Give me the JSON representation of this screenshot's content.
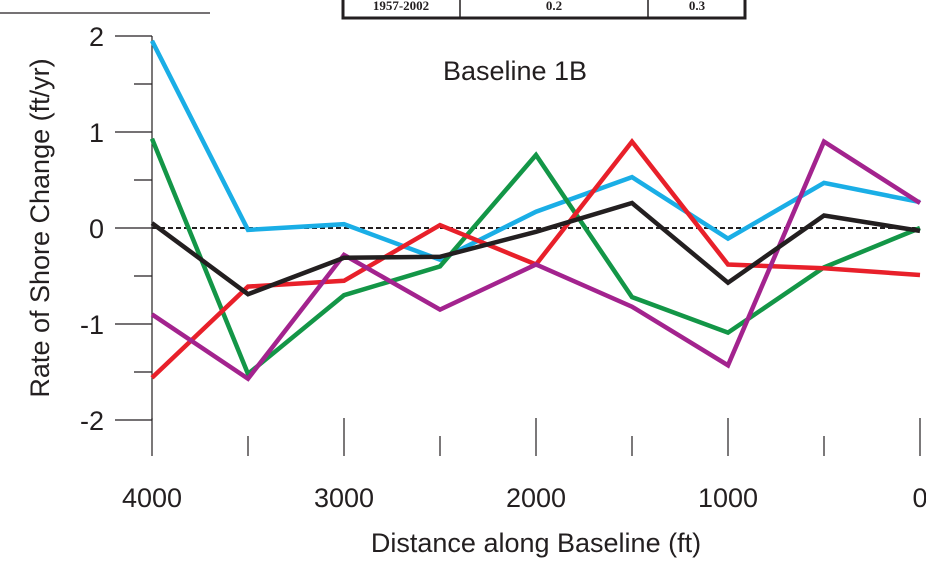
{
  "chart_data": {
    "type": "line",
    "title": "Baseline 1B",
    "xlabel": "Distance along Baseline (ft)",
    "ylabel": "Rate of Shore Change (ft/yr)",
    "xlim": [
      4000,
      0
    ],
    "ylim": [
      -2,
      2
    ],
    "x_ticks": [
      "4000",
      "3000",
      "2000",
      "1000",
      "0"
    ],
    "y_ticks": [
      "2",
      "1",
      "0",
      "-1",
      "-2"
    ],
    "zero_line": "dashed",
    "grid": false,
    "legend": "none",
    "x": [
      4000,
      3500,
      3000,
      2500,
      2000,
      1500,
      1000,
      500,
      0
    ],
    "series": [
      {
        "color": "#1aaee6",
        "values": [
          1.95,
          -0.02,
          0.04,
          -0.33,
          0.17,
          0.53,
          -0.11,
          0.47,
          0.27
        ]
      },
      {
        "color": "#139647",
        "values": [
          0.93,
          -1.52,
          -0.7,
          -0.4,
          0.76,
          -0.72,
          -1.09,
          -0.41,
          0.0
        ]
      },
      {
        "color": "#e8202a",
        "values": [
          -1.56,
          -0.61,
          -0.55,
          0.03,
          -0.38,
          0.9,
          -0.38,
          -0.42,
          -0.49
        ]
      },
      {
        "color": "#a3238e",
        "values": [
          -0.9,
          -1.57,
          -0.28,
          -0.85,
          -0.38,
          -0.82,
          -1.43,
          0.9,
          0.26
        ]
      },
      {
        "color": "#231f20",
        "values": [
          0.05,
          -0.69,
          -0.31,
          -0.3,
          -0.04,
          0.26,
          -0.57,
          0.13,
          -0.03
        ]
      }
    ],
    "inset_table": {
      "row_label": "1957-2002",
      "values": [
        "0.2",
        "0.3"
      ]
    }
  }
}
